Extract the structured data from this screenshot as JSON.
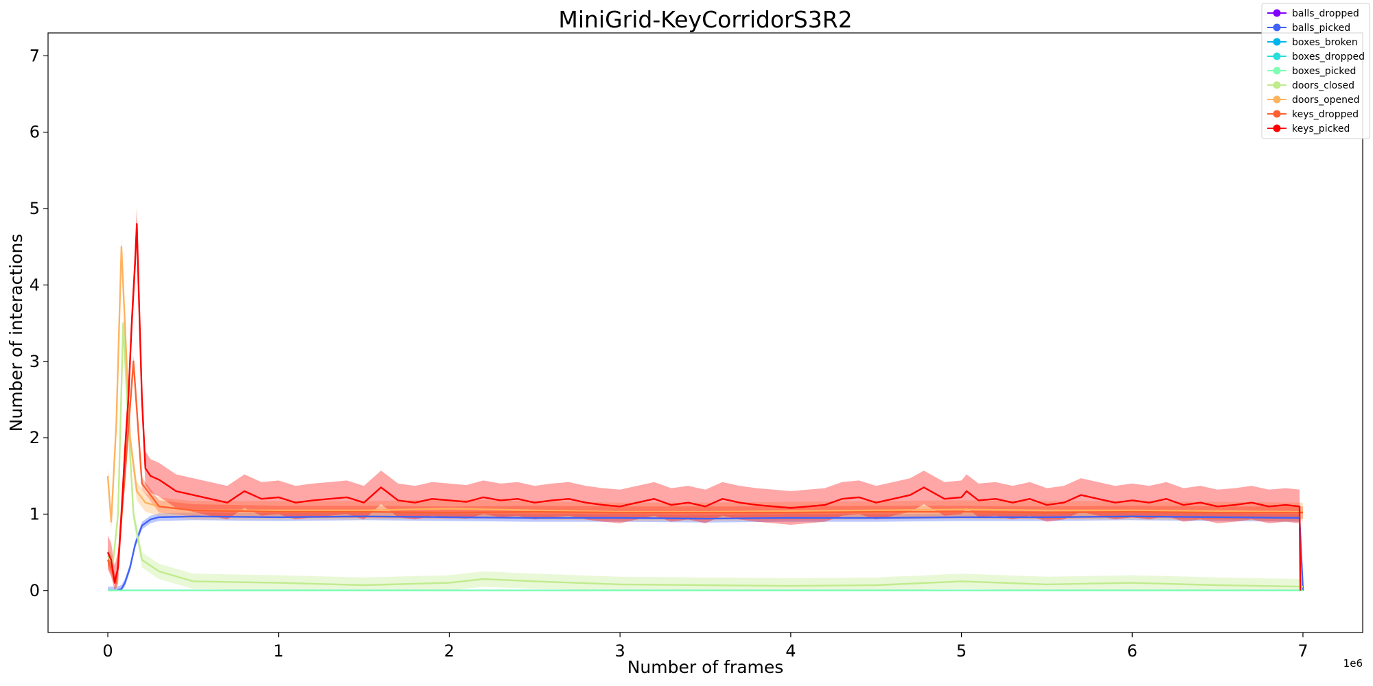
{
  "chart_data": {
    "type": "line",
    "title": "MiniGrid-KeyCorridorS3R2",
    "xlabel": "Number of frames",
    "ylabel": "Number of interactions",
    "x_offset_label": "1e6",
    "x_scale": 1000000,
    "xlim": [
      -0.35,
      7.35
    ],
    "ylim": [
      -0.55,
      7.3
    ],
    "xticks": [
      0,
      1,
      2,
      3,
      4,
      5,
      6,
      7
    ],
    "yticks": [
      0,
      1,
      2,
      3,
      4,
      5,
      6,
      7
    ],
    "grid": false,
    "legend_position": "top-right",
    "series": [
      {
        "name": "balls_dropped",
        "color": "#8000ff",
        "x": [
          0.0,
          7.0
        ],
        "y": [
          0.0,
          0.0
        ],
        "band": 0.0
      },
      {
        "name": "balls_picked",
        "color": "#4062fa",
        "x": [
          0.0,
          0.05,
          0.08,
          0.1,
          0.13,
          0.16,
          0.2,
          0.25,
          0.3,
          0.5,
          1.0,
          1.5,
          2.0,
          2.5,
          3.0,
          3.5,
          4.0,
          4.5,
          5.0,
          5.5,
          6.0,
          6.5,
          6.98,
          7.0
        ],
        "y": [
          0.0,
          0.0,
          0.02,
          0.1,
          0.3,
          0.6,
          0.85,
          0.93,
          0.96,
          0.97,
          0.96,
          0.97,
          0.96,
          0.95,
          0.95,
          0.94,
          0.95,
          0.95,
          0.96,
          0.96,
          0.97,
          0.96,
          0.95,
          0.0
        ],
        "band": 0.05
      },
      {
        "name": "boxes_broken",
        "color": "#00b5eb",
        "x": [
          0.0,
          7.0
        ],
        "y": [
          0.0,
          0.0
        ],
        "band": 0.0
      },
      {
        "name": "boxes_dropped",
        "color": "#2adddd",
        "x": [
          0.0,
          7.0
        ],
        "y": [
          0.0,
          0.0
        ],
        "band": 0.0
      },
      {
        "name": "boxes_picked",
        "color": "#80ffb4",
        "x": [
          0.0,
          7.0
        ],
        "y": [
          0.0,
          0.0
        ],
        "band": 0.0
      },
      {
        "name": "doors_closed",
        "color": "#c0eb8d",
        "x": [
          0.0,
          0.03,
          0.06,
          0.09,
          0.12,
          0.15,
          0.2,
          0.3,
          0.5,
          1.0,
          1.5,
          2.0,
          2.2,
          2.5,
          3.0,
          3.5,
          4.0,
          4.5,
          5.0,
          5.5,
          6.0,
          6.5,
          7.0
        ],
        "y": [
          0.45,
          0.35,
          1.0,
          3.5,
          2.2,
          1.0,
          0.4,
          0.25,
          0.12,
          0.1,
          0.07,
          0.1,
          0.15,
          0.12,
          0.08,
          0.07,
          0.06,
          0.07,
          0.12,
          0.08,
          0.1,
          0.07,
          0.05
        ],
        "band": 0.1
      },
      {
        "name": "doors_opened",
        "color": "#ffb360",
        "x": [
          0.0,
          0.02,
          0.05,
          0.08,
          0.1,
          0.13,
          0.17,
          0.22,
          0.3,
          0.5,
          1.0,
          1.5,
          2.0,
          2.5,
          3.0,
          3.5,
          4.0,
          4.5,
          5.0,
          5.5,
          6.0,
          6.5,
          7.0
        ],
        "y": [
          1.5,
          0.9,
          2.2,
          4.5,
          3.5,
          2.0,
          1.3,
          1.15,
          1.1,
          1.05,
          1.05,
          1.05,
          1.07,
          1.05,
          1.03,
          1.03,
          1.04,
          1.05,
          1.06,
          1.05,
          1.05,
          1.04,
          1.03
        ],
        "band": 0.12
      },
      {
        "name": "keys_dropped",
        "color": "#ff6030",
        "x": [
          0.0,
          0.05,
          0.1,
          0.15,
          0.2,
          0.3,
          0.5,
          1.0,
          1.5,
          2.0,
          2.5,
          3.0,
          3.5,
          4.0,
          4.5,
          5.0,
          5.5,
          6.0,
          6.5,
          7.0
        ],
        "y": [
          0.4,
          0.1,
          1.5,
          3.0,
          1.4,
          1.1,
          1.05,
          1.03,
          1.03,
          1.02,
          1.03,
          1.02,
          1.02,
          1.02,
          1.03,
          1.03,
          1.02,
          1.03,
          1.02,
          1.02
        ],
        "band": 0.08
      },
      {
        "name": "keys_picked",
        "color": "#ff0000",
        "x": [
          0.0,
          0.02,
          0.04,
          0.06,
          0.08,
          0.1,
          0.12,
          0.14,
          0.16,
          0.17,
          0.18,
          0.2,
          0.22,
          0.25,
          0.3,
          0.4,
          0.5,
          0.6,
          0.7,
          0.8,
          0.9,
          1.0,
          1.1,
          1.2,
          1.3,
          1.4,
          1.5,
          1.6,
          1.63,
          1.7,
          1.8,
          1.9,
          2.0,
          2.1,
          2.2,
          2.3,
          2.4,
          2.5,
          2.6,
          2.7,
          2.8,
          2.9,
          3.0,
          3.1,
          3.2,
          3.3,
          3.4,
          3.5,
          3.6,
          3.7,
          3.8,
          3.9,
          4.0,
          4.1,
          4.2,
          4.3,
          4.4,
          4.5,
          4.6,
          4.7,
          4.78,
          4.9,
          5.0,
          5.03,
          5.1,
          5.2,
          5.3,
          5.4,
          5.5,
          5.6,
          5.7,
          5.8,
          5.9,
          6.0,
          6.1,
          6.2,
          6.3,
          6.4,
          6.5,
          6.6,
          6.7,
          6.8,
          6.9,
          6.98,
          6.985
        ],
        "y": [
          0.5,
          0.4,
          0.1,
          0.3,
          1.0,
          1.8,
          2.5,
          3.5,
          4.3,
          4.8,
          4.0,
          2.5,
          1.6,
          1.5,
          1.45,
          1.3,
          1.25,
          1.2,
          1.15,
          1.3,
          1.2,
          1.22,
          1.15,
          1.18,
          1.2,
          1.22,
          1.15,
          1.35,
          1.3,
          1.18,
          1.15,
          1.2,
          1.18,
          1.16,
          1.22,
          1.18,
          1.2,
          1.15,
          1.18,
          1.2,
          1.15,
          1.12,
          1.1,
          1.15,
          1.2,
          1.12,
          1.15,
          1.1,
          1.2,
          1.15,
          1.12,
          1.1,
          1.08,
          1.1,
          1.12,
          1.2,
          1.22,
          1.15,
          1.2,
          1.25,
          1.35,
          1.2,
          1.22,
          1.3,
          1.18,
          1.2,
          1.15,
          1.2,
          1.12,
          1.15,
          1.25,
          1.2,
          1.15,
          1.18,
          1.15,
          1.2,
          1.12,
          1.15,
          1.1,
          1.12,
          1.15,
          1.1,
          1.12,
          1.1,
          0.0
        ],
        "band": 0.22
      }
    ]
  }
}
